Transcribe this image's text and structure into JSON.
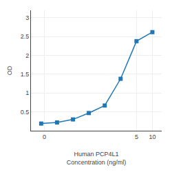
{
  "chart_data": {
    "type": "line",
    "xlabel": "Human PCP4L1\nConcentration (ng/ml)",
    "ylabel": "OD",
    "x": [
      0.0781,
      0.156,
      0.313,
      0.625,
      1.25,
      2.5,
      5.0,
      10.0
    ],
    "values": [
      0.19,
      0.22,
      0.3,
      0.47,
      0.67,
      1.38,
      2.38,
      2.62
    ],
    "marker": "square",
    "log": "x",
    "xlim": [
      0.05,
      15
    ],
    "xticks": [
      {
        "value": 0.09,
        "label": "0"
      },
      5.0,
      10.0
    ],
    "ylim": [
      0.0,
      3.2
    ],
    "yticks": [
      0.5,
      1.0,
      1.5,
      2.0,
      2.5,
      3.0
    ],
    "grid": true
  }
}
